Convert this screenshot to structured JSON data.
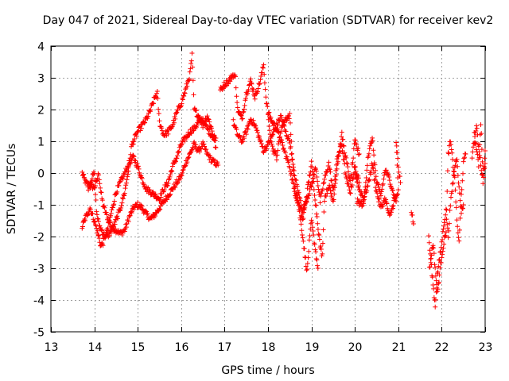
{
  "chart_data": {
    "type": "scatter",
    "title": "Day 047 of 2021, Sidereal Day-to-day VTEC variation (SDTVAR) for receiver kev2",
    "xlabel": "GPS time / hours",
    "ylabel": "SDTVAR / TECUs",
    "xlim": [
      13,
      23
    ],
    "ylim": [
      -5,
      4
    ],
    "xticks": [
      13,
      14,
      15,
      16,
      17,
      18,
      19,
      20,
      21,
      22,
      23
    ],
    "yticks": [
      -5,
      -4,
      -3,
      -2,
      -1,
      0,
      1,
      2,
      3,
      4
    ],
    "grid": true,
    "marker": "plus",
    "series_color": "#ff0000",
    "series": [
      {
        "name": "SDTVAR",
        "tracks": [
          [
            [
              13.72,
              0.0
            ],
            [
              13.8,
              -0.3
            ],
            [
              13.9,
              -0.4
            ],
            [
              14.0,
              -0.45
            ],
            [
              14.05,
              -0.3
            ],
            [
              14.1,
              0.0
            ],
            [
              14.15,
              -0.6
            ],
            [
              14.2,
              -1.0
            ],
            [
              14.3,
              -1.4
            ],
            [
              14.4,
              -1.7
            ],
            [
              14.5,
              -1.8
            ],
            [
              14.6,
              -1.9
            ],
            [
              14.7,
              -1.8
            ],
            [
              14.8,
              -1.4
            ],
            [
              14.9,
              -1.1
            ],
            [
              15.0,
              -1.0
            ],
            [
              15.1,
              -1.1
            ],
            [
              15.2,
              -1.3
            ],
            [
              15.3,
              -1.45
            ],
            [
              15.4,
              -1.3
            ],
            [
              15.5,
              -1.1
            ],
            [
              15.6,
              -0.9
            ],
            [
              15.7,
              -0.7
            ],
            [
              15.8,
              -0.5
            ],
            [
              15.9,
              -0.3
            ],
            [
              16.0,
              -0.1
            ],
            [
              16.1,
              0.3
            ],
            [
              16.2,
              0.6
            ],
            [
              16.3,
              0.9
            ],
            [
              16.4,
              0.7
            ],
            [
              16.5,
              0.9
            ],
            [
              16.6,
              0.6
            ],
            [
              16.7,
              0.4
            ],
            [
              16.8,
              0.3
            ],
            [
              16.85,
              0.25
            ]
          ],
          [
            [
              13.72,
              -1.7
            ],
            [
              13.8,
              -1.4
            ],
            [
              13.9,
              -1.1
            ],
            [
              14.0,
              -1.5
            ],
            [
              14.1,
              -2.0
            ],
            [
              14.15,
              -2.3
            ],
            [
              14.2,
              -2.2
            ],
            [
              14.3,
              -1.8
            ],
            [
              14.4,
              -1.2
            ],
            [
              14.5,
              -0.6
            ],
            [
              14.6,
              -0.3
            ],
            [
              14.7,
              0.0
            ],
            [
              14.8,
              0.3
            ],
            [
              14.9,
              0.5
            ],
            [
              15.0,
              0.2
            ],
            [
              15.1,
              -0.2
            ],
            [
              15.2,
              -0.5
            ],
            [
              15.3,
              -0.6
            ],
            [
              15.4,
              -0.7
            ],
            [
              15.5,
              -0.8
            ],
            [
              15.6,
              -0.5
            ],
            [
              15.7,
              -0.3
            ],
            [
              15.8,
              0.2
            ],
            [
              15.9,
              0.5
            ],
            [
              16.0,
              0.9
            ],
            [
              16.1,
              1.1
            ],
            [
              16.2,
              1.3
            ],
            [
              16.3,
              1.4
            ],
            [
              16.4,
              1.6
            ],
            [
              16.5,
              1.7
            ],
            [
              16.6,
              1.4
            ],
            [
              16.7,
              1.2
            ],
            [
              16.8,
              1.1
            ]
          ],
          [
            [
              13.85,
              -0.5
            ],
            [
              13.9,
              -0.3
            ],
            [
              14.0,
              0.0
            ],
            [
              14.05,
              -1.2
            ],
            [
              14.1,
              -1.6
            ],
            [
              14.2,
              -1.9
            ],
            [
              14.3,
              -2.0
            ],
            [
              14.4,
              -1.8
            ],
            [
              14.5,
              -1.5
            ],
            [
              14.6,
              -1.1
            ],
            [
              14.7,
              -0.6
            ],
            [
              14.8,
              0.2
            ],
            [
              14.85,
              0.8
            ],
            [
              14.9,
              1.0
            ],
            [
              15.0,
              1.3
            ],
            [
              15.1,
              1.5
            ],
            [
              15.2,
              1.7
            ],
            [
              15.3,
              2.0
            ],
            [
              15.4,
              2.4
            ],
            [
              15.45,
              2.5
            ],
            [
              15.5,
              1.6
            ],
            [
              15.6,
              1.2
            ],
            [
              15.7,
              1.3
            ],
            [
              15.8,
              1.5
            ],
            [
              15.9,
              1.9
            ],
            [
              16.0,
              2.2
            ],
            [
              16.1,
              2.6
            ],
            [
              16.2,
              3.1
            ],
            [
              16.25,
              3.7
            ],
            [
              16.3,
              2.0
            ],
            [
              16.4,
              1.8
            ],
            [
              16.5,
              1.5
            ],
            [
              16.6,
              1.8
            ],
            [
              16.7,
              1.4
            ],
            [
              16.8,
              0.8
            ]
          ],
          [
            [
              16.9,
              2.6
            ],
            [
              17.0,
              2.8
            ],
            [
              17.1,
              2.9
            ],
            [
              17.2,
              3.1
            ],
            [
              17.25,
              3.0
            ],
            [
              17.3,
              2.0
            ],
            [
              17.4,
              1.7
            ],
            [
              17.5,
              2.5
            ],
            [
              17.6,
              2.9
            ],
            [
              17.7,
              2.4
            ],
            [
              17.8,
              2.8
            ],
            [
              17.9,
              3.4
            ],
            [
              17.95,
              2.4
            ],
            [
              18.0,
              1.9
            ],
            [
              18.1,
              1.6
            ],
            [
              18.2,
              1.4
            ],
            [
              18.3,
              1.0
            ],
            [
              18.4,
              0.6
            ],
            [
              18.5,
              0.2
            ],
            [
              18.6,
              -0.5
            ],
            [
              18.7,
              -1.0
            ],
            [
              18.8,
              -2.0
            ],
            [
              18.85,
              -2.6
            ],
            [
              18.9,
              -3.1
            ],
            [
              18.95,
              -2.2
            ],
            [
              19.0,
              -1.5
            ],
            [
              19.1,
              -2.5
            ],
            [
              19.15,
              -3.0
            ]
          ],
          [
            [
              17.2,
              1.6
            ],
            [
              17.3,
              1.2
            ],
            [
              17.4,
              1.0
            ],
            [
              17.5,
              1.3
            ],
            [
              17.6,
              1.7
            ],
            [
              17.7,
              1.5
            ],
            [
              17.8,
              1.1
            ],
            [
              17.9,
              0.7
            ],
            [
              18.0,
              0.9
            ],
            [
              18.1,
              1.2
            ],
            [
              18.2,
              1.5
            ],
            [
              18.3,
              1.8
            ],
            [
              18.4,
              1.3
            ],
            [
              18.5,
              1.0
            ],
            [
              18.6,
              0.0
            ],
            [
              18.7,
              -0.6
            ],
            [
              18.8,
              -1.2
            ],
            [
              19.0,
              -0.4
            ],
            [
              19.1,
              0.2
            ],
            [
              19.2,
              -0.9
            ],
            [
              19.3,
              -0.2
            ],
            [
              19.4,
              0.3
            ],
            [
              19.5,
              -0.6
            ],
            [
              19.6,
              0.5
            ],
            [
              19.7,
              0.9
            ],
            [
              19.8,
              -0.2
            ],
            [
              19.9,
              -0.6
            ],
            [
              20.0,
              0.2
            ],
            [
              20.1,
              -0.3
            ]
          ],
          [
            [
              18.0,
              1.8
            ],
            [
              18.1,
              0.8
            ],
            [
              18.2,
              0.5
            ],
            [
              18.3,
              1.4
            ],
            [
              18.4,
              1.7
            ],
            [
              18.5,
              1.8
            ],
            [
              18.6,
              -0.4
            ],
            [
              18.7,
              -0.9
            ],
            [
              18.8,
              -1.5
            ],
            [
              19.0,
              0.3
            ],
            [
              19.2,
              -2.3
            ],
            [
              19.25,
              -2.6
            ],
            [
              19.3,
              -0.8
            ],
            [
              19.4,
              -0.4
            ],
            [
              19.5,
              -0.9
            ],
            [
              19.6,
              0.3
            ],
            [
              19.7,
              1.2
            ],
            [
              19.8,
              0.4
            ],
            [
              19.9,
              -0.3
            ],
            [
              20.0,
              1.0
            ],
            [
              20.1,
              0.6
            ]
          ],
          [
            [
              20.0,
              0.0
            ],
            [
              20.1,
              -0.5
            ],
            [
              20.2,
              -0.8
            ],
            [
              20.3,
              -0.4
            ],
            [
              20.4,
              0.3
            ],
            [
              20.5,
              -0.6
            ],
            [
              20.6,
              -1.1
            ],
            [
              20.7,
              -0.8
            ],
            [
              20.8,
              -1.4
            ],
            [
              20.9,
              -0.9
            ],
            [
              21.0,
              -0.6
            ],
            [
              20.95,
              1.0
            ],
            [
              21.0,
              0.2
            ],
            [
              21.05,
              -0.3
            ]
          ],
          [
            [
              20.05,
              -0.9
            ],
            [
              20.2,
              -1.0
            ],
            [
              20.3,
              0.5
            ],
            [
              20.4,
              1.1
            ],
            [
              20.5,
              -0.3
            ],
            [
              20.6,
              -0.7
            ],
            [
              20.7,
              0.1
            ],
            [
              20.8,
              -0.2
            ],
            [
              20.9,
              -0.7
            ],
            [
              20.95,
              -0.9
            ]
          ],
          [
            [
              21.3,
              -1.2
            ],
            [
              21.35,
              -1.6
            ]
          ],
          [
            [
              21.7,
              -2.0
            ],
            [
              21.75,
              -2.8
            ],
            [
              21.8,
              -3.5
            ],
            [
              21.85,
              -4.2
            ],
            [
              21.9,
              -3.2
            ],
            [
              21.95,
              -2.7
            ],
            [
              22.0,
              -2.2
            ],
            [
              22.05,
              -1.6
            ],
            [
              22.1,
              -1.2
            ],
            [
              22.15,
              -2.0
            ],
            [
              22.2,
              -1.0
            ],
            [
              22.25,
              -0.4
            ],
            [
              22.3,
              0.2
            ],
            [
              22.35,
              0.5
            ],
            [
              22.4,
              -0.5
            ],
            [
              22.45,
              -1.2
            ],
            [
              22.5,
              -1.0
            ]
          ],
          [
            [
              21.72,
              -3.0
            ],
            [
              21.8,
              -2.2
            ],
            [
              21.9,
              -3.8
            ],
            [
              22.0,
              -2.6
            ],
            [
              22.1,
              -1.8
            ],
            [
              22.15,
              0.6
            ],
            [
              22.2,
              1.0
            ],
            [
              22.25,
              0.4
            ],
            [
              22.3,
              -0.2
            ],
            [
              22.35,
              -1.5
            ],
            [
              22.4,
              -2.2
            ],
            [
              22.45,
              -0.7
            ],
            [
              22.5,
              0.3
            ],
            [
              22.55,
              0.6
            ]
          ],
          [
            [
              22.7,
              0.5
            ],
            [
              22.75,
              1.2
            ],
            [
              22.8,
              0.8
            ],
            [
              22.85,
              0.2
            ],
            [
              22.9,
              1.6
            ],
            [
              22.95,
              0.0
            ],
            [
              23.0,
              0.3
            ]
          ],
          [
            [
              22.75,
              0.9
            ],
            [
              22.8,
              1.5
            ],
            [
              22.85,
              0.8
            ],
            [
              22.9,
              0.3
            ],
            [
              22.95,
              -0.3
            ],
            [
              23.0,
              0.7
            ]
          ]
        ]
      }
    ]
  }
}
